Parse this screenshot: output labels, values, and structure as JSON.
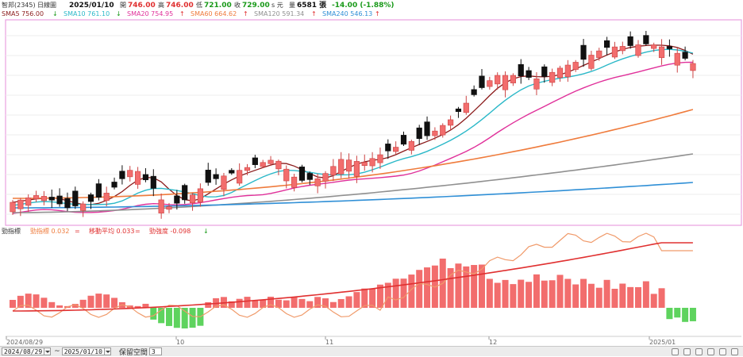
{
  "header": {
    "stock": "智邦(2345)",
    "period": "日線圖",
    "date": "2025/01/10",
    "open_label": "開",
    "open": "746.00",
    "high_label": "高",
    "high": "746.00",
    "low_label": "低",
    "low": "721.00",
    "close_label": "收",
    "close": "729.00",
    "vol_prefix": "s 元",
    "vol_label": "量",
    "volume": "6581 張",
    "change": "-14.00 (-1.88%)"
  },
  "ma_legend": [
    {
      "label": "SMA5 756.00",
      "arrow": "↓",
      "color": "#8b1a1a"
    },
    {
      "label": "SMA10 761.10",
      "arrow": "↓",
      "color": "#2ab8c8"
    },
    {
      "label": "SMA20 754.95",
      "arrow": "↑",
      "color": "#e0309a"
    },
    {
      "label": "SMA60 664.62",
      "arrow": "↑",
      "color": "#ef7b3c"
    },
    {
      "label": "SMA120 591.34",
      "arrow": "↑",
      "color": "#909090"
    },
    {
      "label": "SMA240 546.13",
      "arrow": "↑",
      "color": "#2f8fd6"
    }
  ],
  "indicator_legend": {
    "name": "勁指標",
    "items": [
      {
        "label": "勁指標 0.032",
        "arrow": "=",
        "color": "#ef7b3c"
      },
      {
        "label": "移動平均 0.033",
        "arrow": "=",
        "color": "#e03030"
      },
      {
        "label": "勁強度 -0.098",
        "arrow": "↓",
        "color": "#e03030"
      }
    ]
  },
  "x_axis": {
    "labels": [
      "2024/08/29",
      "10",
      "11",
      "12",
      "2025/01"
    ]
  },
  "bottom_bar": {
    "start_date": "2024/08/29",
    "end_date": "2025/01/10",
    "spacing_label": "保留空間",
    "spacing_value": "3"
  },
  "colors": {
    "up": "#f26d6d",
    "down": "#111111",
    "frame": "#e8a0e0",
    "hist_up": "#f26d6d",
    "hist_down": "#5ed35e"
  },
  "chart_data": {
    "type": "candlestick",
    "title": "智邦(2345) 日線圖",
    "x": [
      "2024/08/29",
      "10",
      "11",
      "12",
      "2025/01"
    ],
    "series": [
      {
        "name": "SMA5",
        "last": 756.0
      },
      {
        "name": "SMA10",
        "last": 761.1
      },
      {
        "name": "SMA20",
        "last": 754.95
      },
      {
        "name": "SMA60",
        "last": 664.62
      },
      {
        "name": "SMA120",
        "last": 591.34
      },
      {
        "name": "SMA240",
        "last": 546.13
      }
    ],
    "last_candle": {
      "date": "2025/01/10",
      "open": 746.0,
      "high": 746.0,
      "low": 721.0,
      "close": 729.0,
      "volume": 6581,
      "change": -14.0,
      "change_pct": -1.88
    },
    "indicator": [
      {
        "name": "勁指標",
        "last": 0.032
      },
      {
        "name": "移動平均",
        "last": 0.033
      },
      {
        "name": "勁強度",
        "last": -0.098
      }
    ]
  }
}
